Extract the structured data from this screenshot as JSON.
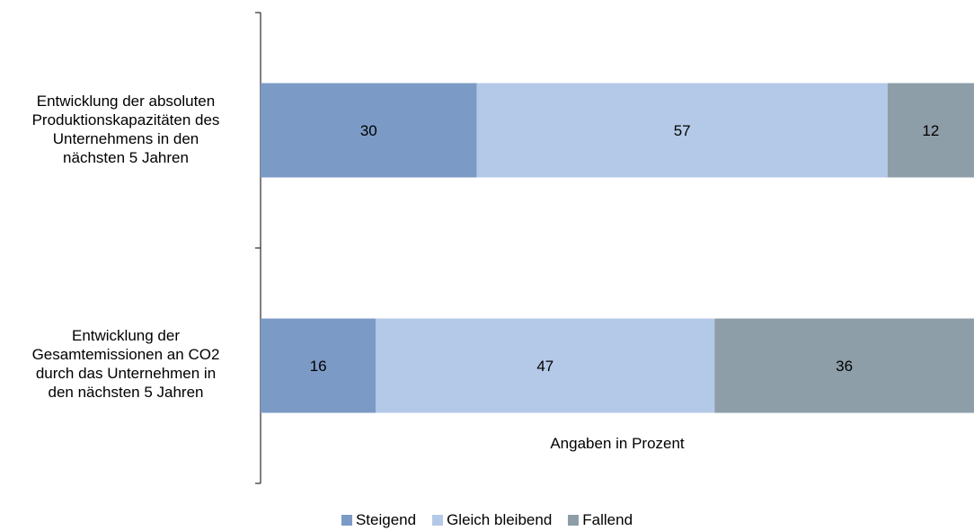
{
  "chart_data": {
    "type": "bar",
    "orientation": "horizontal",
    "stacked": true,
    "categories": [
      "Entwicklung der absoluten Produktionskapazitäten des Unternehmens in den nächsten 5 Jahren",
      "Entwicklung der Gesamtemissionen an CO2 durch das Unternehmen in den nächsten 5 Jahren"
    ],
    "category_lines": [
      [
        "Entwicklung der absoluten",
        "Produktionskapazitäten des",
        "Unternehmens in den",
        "nächsten 5 Jahren"
      ],
      [
        "Entwicklung der",
        "Gesamtemissionen an CO2",
        "durch das Unternehmen in",
        "den nächsten 5 Jahren"
      ]
    ],
    "series": [
      {
        "name": "Steigend",
        "values": [
          30,
          16
        ],
        "color": "#7c9ac6"
      },
      {
        "name": "Gleich bleibend",
        "values": [
          57,
          47
        ],
        "color": "#b4c9e7"
      },
      {
        "name": "Fallend",
        "values": [
          12,
          36
        ],
        "color": "#8e9ea8"
      }
    ],
    "xlim": [
      0,
      99
    ],
    "note": "Angaben in Prozent",
    "legend_position": "bottom",
    "grid": false
  }
}
